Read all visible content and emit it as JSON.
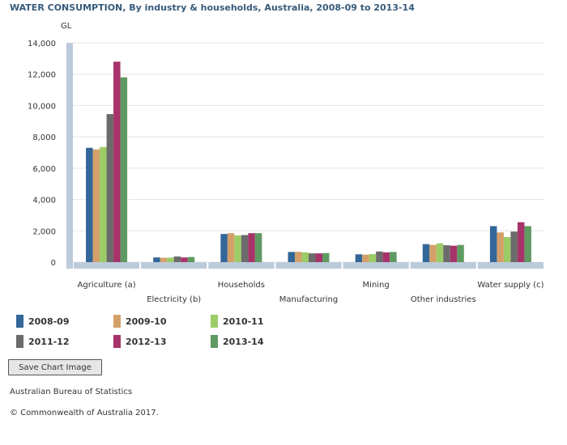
{
  "title": "WATER CONSUMPTION, By industry & households, Australia, 2008-09 to 2013-14",
  "save_button": "Save Chart Image",
  "source": "Australian Bureau of Statistics",
  "copyright": "© Commonwealth of Australia 2017.",
  "chart_data": {
    "type": "bar",
    "title": "WATER CONSUMPTION, By industry & households, Australia, 2008-09 to 2013-14",
    "ylabel": "GL",
    "xlabel": "",
    "ylim": [
      0,
      14000
    ],
    "yticks": [
      0,
      2000,
      4000,
      6000,
      8000,
      10000,
      12000,
      14000
    ],
    "ytick_labels": [
      "0",
      "2,000",
      "4,000",
      "6,000",
      "8,000",
      "10,000",
      "12,000",
      "14,000"
    ],
    "grid": true,
    "legend_position": "bottom",
    "categories": [
      "Agriculture (a)",
      "Electricity (b)",
      "Households",
      "Manufacturing",
      "Mining",
      "Other industries",
      "Water supply (c)"
    ],
    "series": [
      {
        "name": "2008-09",
        "color": "#336699",
        "values": [
          7300,
          300,
          1800,
          650,
          500,
          1150,
          2300
        ]
      },
      {
        "name": "2009-10",
        "color": "#d4a06a",
        "values": [
          7200,
          280,
          1850,
          660,
          480,
          1100,
          1900
        ]
      },
      {
        "name": "2010-11",
        "color": "#9ccc65",
        "values": [
          7350,
          290,
          1700,
          620,
          520,
          1200,
          1600
        ]
      },
      {
        "name": "2011-12",
        "color": "#6b6b6b",
        "values": [
          9450,
          360,
          1730,
          560,
          680,
          1080,
          1950
        ]
      },
      {
        "name": "2012-13",
        "color": "#a8326a",
        "values": [
          12800,
          300,
          1850,
          560,
          620,
          1050,
          2550
        ]
      },
      {
        "name": "2013-14",
        "color": "#5f9a62",
        "values": [
          11800,
          330,
          1850,
          580,
          650,
          1100,
          2300
        ]
      }
    ]
  }
}
